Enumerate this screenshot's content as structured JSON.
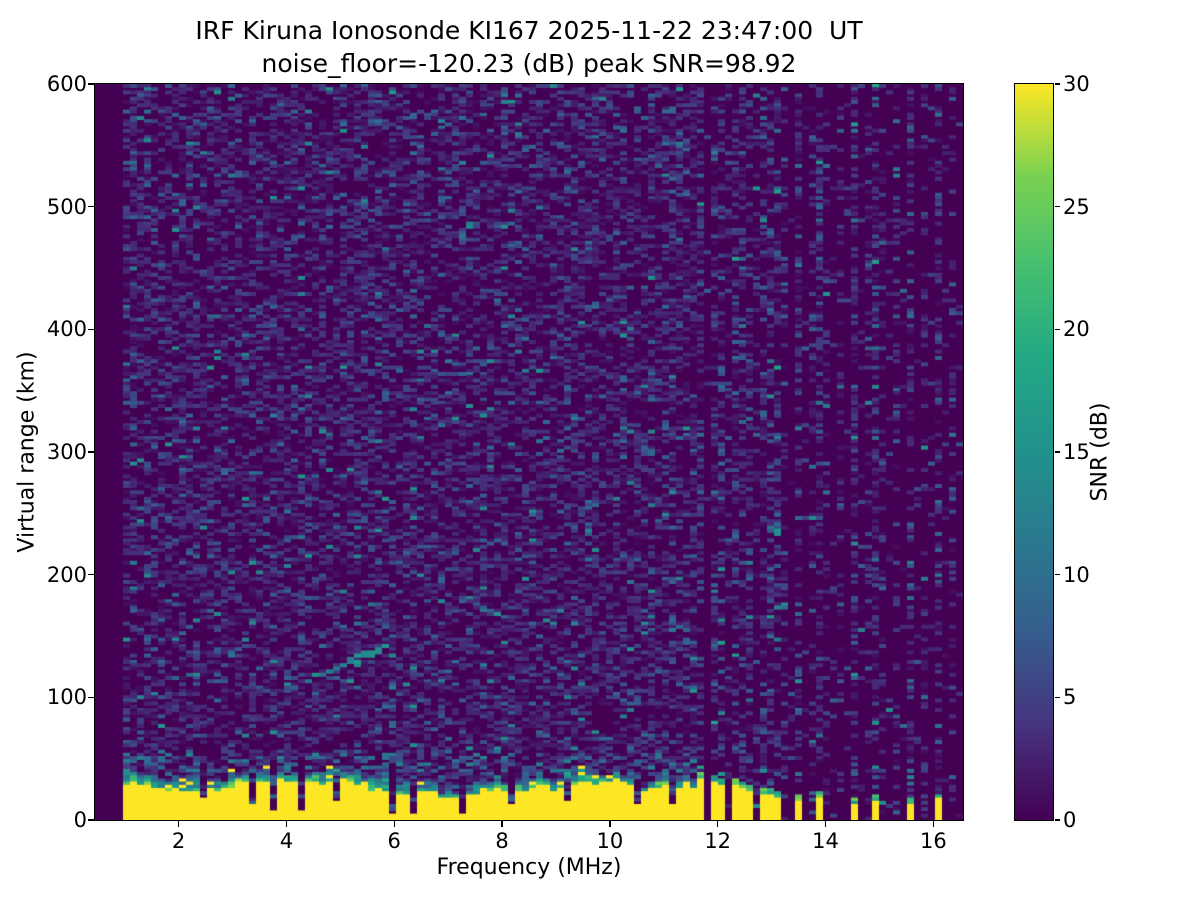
{
  "title": "IRF Kiruna Ionosonde KI167 2025-11-22 23:47:00  UT",
  "subtitle": "noise_floor=-120.23 (dB) peak SNR=98.92",
  "chart_data": {
    "type": "heatmap",
    "title": "IRF Kiruna Ionosonde KI167 2025-11-22 23:47:00  UT",
    "subtitle": "noise_floor=-120.23 (dB) peak SNR=98.92",
    "xlabel": "Frequency (MHz)",
    "ylabel": "Virtual range (km)",
    "xlim": [
      0.45,
      16.55
    ],
    "ylim": [
      0,
      600
    ],
    "xticks": [
      2,
      4,
      6,
      8,
      10,
      12,
      14,
      16
    ],
    "yticks": [
      0,
      100,
      200,
      300,
      400,
      500,
      600
    ],
    "grid": false,
    "colorbar": {
      "label": "SNR (dB)",
      "ticks": [
        0,
        5,
        10,
        15,
        20,
        25,
        30
      ],
      "vmin": 0,
      "vmax": 30,
      "colormap": "viridis"
    },
    "colormap_stops": [
      [
        0.0,
        "#440154"
      ],
      [
        0.125,
        "#46327e"
      ],
      [
        0.25,
        "#365c8d"
      ],
      [
        0.375,
        "#2a788e"
      ],
      [
        0.5,
        "#21918c"
      ],
      [
        0.625,
        "#22a884"
      ],
      [
        0.75,
        "#44bf70"
      ],
      [
        0.875,
        "#7ad151"
      ],
      [
        1.0,
        "#fde725"
      ]
    ],
    "features": {
      "noise_floor_db": -120.23,
      "peak_snr_db": 98.92,
      "data_start_mhz": 0.95,
      "background_noise_fill": 0.47,
      "ground_clutter_band": {
        "f_start_mhz": 0.95,
        "f_end_mhz": 11.62,
        "solid_top_km": 24,
        "ragged_extent_km": 13,
        "speckle_top_km": 58
      },
      "band_notches": [
        {
          "mhz": 2.52,
          "bottom_km": 18,
          "top_km": 36
        },
        {
          "mhz": 3.35,
          "bottom_km": 14,
          "top_km": 38
        },
        {
          "mhz": 3.78,
          "bottom_km": 8,
          "top_km": 46
        },
        {
          "mhz": 4.28,
          "bottom_km": 8,
          "top_km": 47
        },
        {
          "mhz": 4.95,
          "bottom_km": 16,
          "top_km": 38
        },
        {
          "mhz": 5.95,
          "bottom_km": 4,
          "top_km": 43
        },
        {
          "mhz": 6.32,
          "bottom_km": 6,
          "top_km": 44
        },
        {
          "mhz": 7.32,
          "bottom_km": 6,
          "top_km": 41
        },
        {
          "mhz": 8.22,
          "bottom_km": 14,
          "top_km": 37
        },
        {
          "mhz": 9.15,
          "bottom_km": 16,
          "top_km": 35
        },
        {
          "mhz": 10.45,
          "bottom_km": 14,
          "top_km": 36
        },
        {
          "mhz": 11.15,
          "bottom_km": 12,
          "top_km": 38
        }
      ],
      "rfi_stripes": [
        {
          "mhz": 11.74,
          "height_km": 38
        },
        {
          "mhz": 11.92,
          "height_km": 36
        },
        {
          "mhz": 12.1,
          "height_km": 34
        },
        {
          "mhz": 12.28,
          "height_km": 33
        },
        {
          "mhz": 12.46,
          "height_km": 31
        },
        {
          "mhz": 12.64,
          "height_km": 29
        },
        {
          "mhz": 12.8,
          "height_km": 27
        },
        {
          "mhz": 12.95,
          "height_km": 26
        },
        {
          "mhz": 13.12,
          "height_km": 23
        },
        {
          "mhz": 13.44,
          "height_km": 21
        },
        {
          "mhz": 13.93,
          "height_km": 24
        },
        {
          "mhz": 14.48,
          "height_km": 19
        },
        {
          "mhz": 14.98,
          "height_km": 21
        },
        {
          "mhz": 15.54,
          "height_km": 18
        },
        {
          "mhz": 16.04,
          "height_km": 22
        }
      ],
      "echo_trace": {
        "f_start_mhz": 3.98,
        "range_start_km": 107,
        "f_end_mhz": 5.85,
        "range_end_km": 141,
        "peak_snr_db": 17
      }
    }
  }
}
